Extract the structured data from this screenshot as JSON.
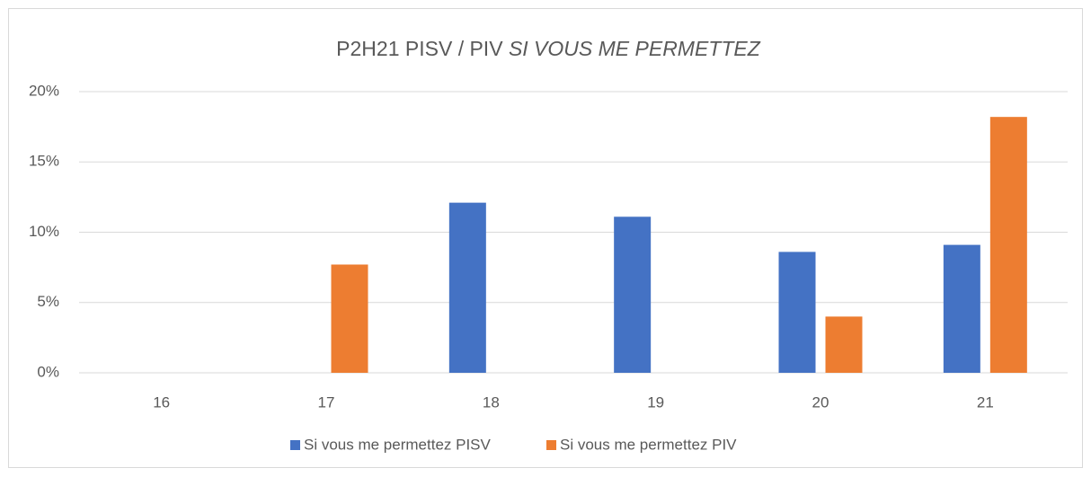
{
  "chart_data": {
    "type": "bar",
    "title": [
      "P2H21 PISV / PIV",
      "SI VOUS ME PERMETTEZ"
    ],
    "categories": [
      "16",
      "17",
      "18",
      "19",
      "20",
      "21"
    ],
    "series": [
      {
        "name": "Si vous me permettez PISV",
        "color": "#4472c4",
        "values": [
          0,
          0,
          12.1,
          11.1,
          8.6,
          9.1
        ]
      },
      {
        "name": "Si vous me permettez PIV",
        "color": "#ed7d31",
        "values": [
          0,
          7.7,
          0,
          0,
          4.0,
          18.2
        ]
      }
    ],
    "ylim": [
      0,
      20
    ],
    "yticks": [
      {
        "value": 0,
        "label": "0%"
      },
      {
        "value": 5,
        "label": "5%"
      },
      {
        "value": 10,
        "label": "10%"
      },
      {
        "value": 15,
        "label": "15%"
      },
      {
        "value": 20,
        "label": "20%"
      }
    ],
    "grid": true,
    "legend": "bottom"
  }
}
